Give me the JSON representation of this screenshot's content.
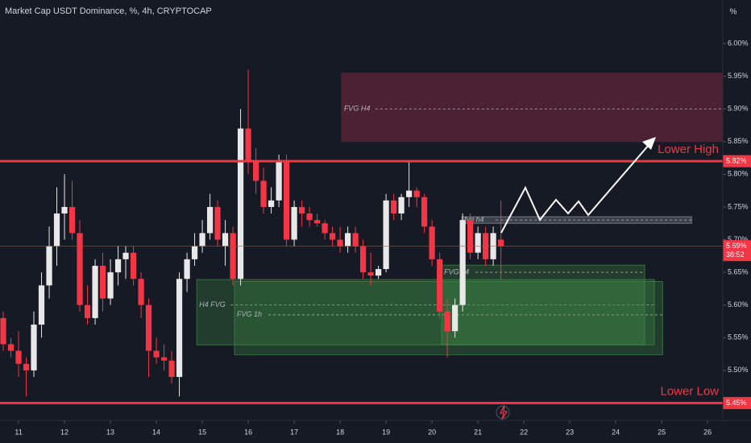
{
  "chart_data": {
    "type": "candlestick",
    "title": "Market Cap USDT Dominance, %, 4h, CRYPTOCAP",
    "axis_unit": "%",
    "up_color": "#e8e8e8",
    "down_color": "#f23645",
    "x": [
      10.667,
      10.833,
      11.0,
      11.167,
      11.333,
      11.5,
      11.667,
      11.833,
      12.0,
      12.167,
      12.333,
      12.5,
      12.667,
      12.833,
      13.0,
      13.167,
      13.333,
      13.5,
      13.667,
      13.833,
      14.0,
      14.167,
      14.333,
      14.5,
      14.667,
      14.833,
      15.0,
      15.167,
      15.333,
      15.5,
      15.667,
      15.833,
      16.0,
      16.167,
      16.333,
      16.5,
      16.667,
      16.833,
      17.0,
      17.167,
      17.333,
      17.5,
      17.667,
      17.833,
      18.0,
      18.167,
      18.333,
      18.5,
      18.667,
      18.833,
      19.0,
      19.167,
      19.333,
      19.5,
      19.667,
      19.833,
      20.0,
      20.167,
      20.333,
      20.5,
      20.667,
      20.833,
      21.0,
      21.167,
      21.333,
      21.5
    ],
    "open": [
      5.58,
      5.54,
      5.53,
      5.51,
      5.5,
      5.57,
      5.63,
      5.69,
      5.74,
      5.75,
      5.71,
      5.6,
      5.58,
      5.66,
      5.61,
      5.65,
      5.67,
      5.68,
      5.64,
      5.6,
      5.53,
      5.52,
      5.515,
      5.49,
      5.64,
      5.67,
      5.69,
      5.71,
      5.75,
      5.69,
      5.71,
      5.64,
      5.87,
      5.82,
      5.79,
      5.75,
      5.76,
      5.82,
      5.7,
      5.75,
      5.74,
      5.73,
      5.725,
      5.71,
      5.7,
      5.69,
      5.71,
      5.69,
      5.65,
      5.645,
      5.655,
      5.76,
      5.74,
      5.765,
      5.775,
      5.765,
      5.72,
      5.67,
      5.59,
      5.56,
      5.6,
      5.73,
      5.68,
      5.71,
      5.67,
      5.7
    ],
    "high": [
      5.59,
      5.55,
      5.56,
      5.52,
      5.59,
      5.65,
      5.72,
      5.78,
      5.8,
      5.79,
      5.73,
      5.63,
      5.67,
      5.68,
      5.67,
      5.69,
      5.69,
      5.69,
      5.65,
      5.61,
      5.55,
      5.54,
      5.53,
      5.65,
      5.68,
      5.71,
      5.73,
      5.77,
      5.76,
      5.73,
      5.72,
      5.9,
      5.96,
      5.84,
      5.81,
      5.78,
      5.83,
      5.83,
      5.76,
      5.76,
      5.75,
      5.74,
      5.73,
      5.72,
      5.72,
      5.72,
      5.72,
      5.7,
      5.68,
      5.66,
      5.77,
      5.77,
      5.77,
      5.82,
      5.78,
      5.77,
      5.73,
      5.68,
      5.61,
      5.61,
      5.74,
      5.74,
      5.72,
      5.72,
      5.72,
      5.76
    ],
    "low": [
      5.53,
      5.52,
      5.49,
      5.46,
      5.49,
      5.55,
      5.61,
      5.66,
      5.7,
      5.7,
      5.59,
      5.57,
      5.57,
      5.59,
      5.6,
      5.63,
      5.64,
      5.63,
      5.58,
      5.49,
      5.51,
      5.5,
      5.48,
      5.46,
      5.62,
      5.66,
      5.68,
      5.7,
      5.69,
      5.66,
      5.63,
      5.63,
      5.8,
      5.77,
      5.74,
      5.74,
      5.75,
      5.69,
      5.69,
      5.72,
      5.72,
      5.72,
      5.7,
      5.69,
      5.68,
      5.68,
      5.68,
      5.64,
      5.63,
      5.64,
      5.65,
      5.73,
      5.73,
      5.75,
      5.75,
      5.71,
      5.66,
      5.58,
      5.52,
      5.55,
      5.59,
      5.67,
      5.67,
      5.66,
      5.66,
      5.64
    ],
    "close": [
      5.54,
      5.53,
      5.51,
      5.5,
      5.57,
      5.63,
      5.69,
      5.74,
      5.75,
      5.71,
      5.6,
      5.58,
      5.66,
      5.61,
      5.65,
      5.67,
      5.68,
      5.64,
      5.6,
      5.53,
      5.52,
      5.515,
      5.49,
      5.64,
      5.67,
      5.69,
      5.71,
      5.75,
      5.7,
      5.71,
      5.64,
      5.87,
      5.82,
      5.79,
      5.75,
      5.76,
      5.82,
      5.7,
      5.75,
      5.74,
      5.73,
      5.725,
      5.71,
      5.7,
      5.69,
      5.71,
      5.69,
      5.65,
      5.645,
      5.655,
      5.76,
      5.74,
      5.765,
      5.775,
      5.765,
      5.72,
      5.67,
      5.59,
      5.56,
      5.6,
      5.73,
      5.68,
      5.71,
      5.67,
      5.71,
      5.69
    ],
    "xlim": [
      10.596,
      26.33
    ],
    "ylim": [
      5.4234,
      6.0666
    ],
    "xticks": [
      11,
      12,
      13,
      14,
      15,
      16,
      17,
      18,
      19,
      20,
      21,
      22,
      23,
      24,
      25,
      26
    ],
    "yticks": [
      {
        "value": 5.5,
        "label": "5.50%"
      },
      {
        "value": 5.55,
        "label": "5.55%"
      },
      {
        "value": 5.6,
        "label": "5.60%"
      },
      {
        "value": 5.65,
        "label": "5.65%"
      },
      {
        "value": 5.7,
        "label": "5.70%"
      },
      {
        "value": 5.75,
        "label": "5.75%"
      },
      {
        "value": 5.8,
        "label": "5.80%"
      },
      {
        "value": 5.85,
        "label": "5.85%"
      },
      {
        "value": 5.9,
        "label": "5.90%"
      },
      {
        "value": 5.95,
        "label": "5.95%"
      },
      {
        "value": 6.0,
        "label": "6.00%"
      }
    ],
    "zones": [
      {
        "label": "FVG H4",
        "low": 5.85,
        "high": 5.955,
        "mid": 5.9,
        "x0": 18.03,
        "x1": 26.33,
        "color": "#5a2334"
      },
      {
        "label": "H4 FVG",
        "low": 5.539,
        "high": 5.639,
        "mid": 5.6,
        "x0": 14.88,
        "x1": 24.84,
        "color": "#3f8f46"
      },
      {
        "label": "FVG 1h",
        "low": 5.524,
        "high": 5.636,
        "mid": 5.585,
        "x0": 15.7,
        "x1": 25.02,
        "color": "#3f8f46"
      },
      {
        "label": "FVG h4",
        "low": 5.539,
        "high": 5.661,
        "mid": 5.65,
        "x0": 20.21,
        "x1": 24.63,
        "color": "#3f8f46"
      },
      {
        "label": "fvg h4",
        "low": 5.725,
        "high": 5.735,
        "mid": 5.73,
        "x0": 20.65,
        "x1": 25.65,
        "color": "#9598a1"
      }
    ],
    "levels": [
      {
        "value": 5.82,
        "label": "5.82%",
        "width": 3,
        "annotation": "Lower High"
      },
      {
        "value": 5.69,
        "label": "5.69%",
        "width": 1,
        "countdown": "38:52"
      },
      {
        "value": 5.45,
        "label": "5.45%",
        "width": 3,
        "annotation": "Lower Low"
      }
    ]
  }
}
